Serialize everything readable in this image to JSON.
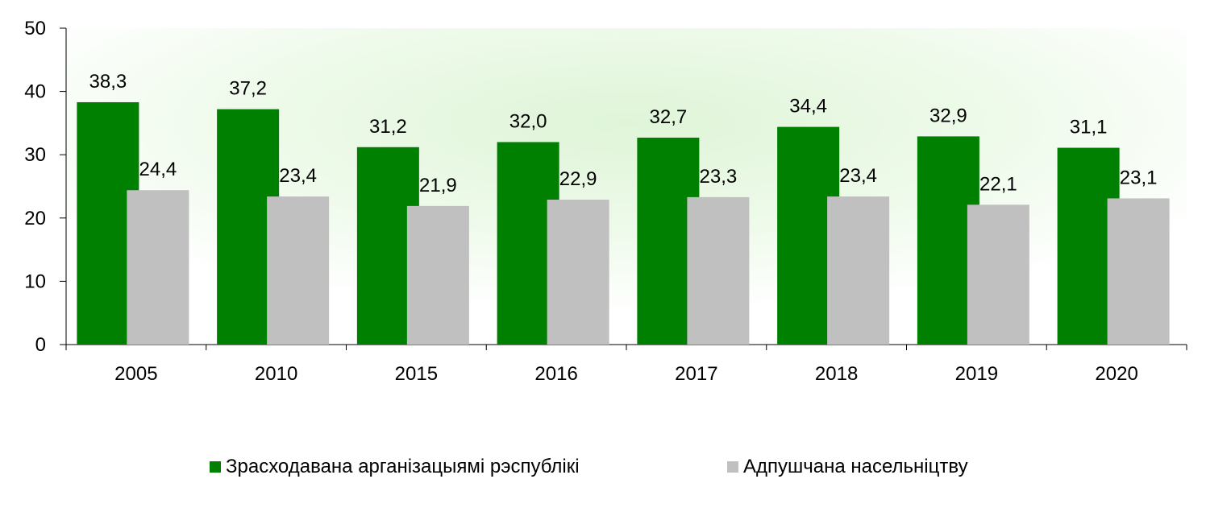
{
  "chart_data": {
    "type": "bar",
    "categories": [
      "2005",
      "2010",
      "2015",
      "2016",
      "2017",
      "2018",
      "2019",
      "2020"
    ],
    "series": [
      {
        "name": "Зрасходавана арганізацыямі рэспублікі",
        "color": "#008000",
        "values": [
          38.3,
          37.2,
          31.2,
          32.0,
          32.7,
          34.4,
          32.9,
          31.1
        ],
        "labels": [
          "38,3",
          "37,2",
          "31,2",
          "32,0",
          "32,7",
          "34,4",
          "32,9",
          "31,1"
        ]
      },
      {
        "name": "Адпушчана насельніцтву",
        "color": "#c0c0c0",
        "values": [
          24.4,
          23.4,
          21.9,
          22.9,
          23.3,
          23.4,
          22.1,
          23.1
        ],
        "labels": [
          "24,4",
          "23,4",
          "21,9",
          "22,9",
          "23,3",
          "23,4",
          "22,1",
          "23,1"
        ]
      }
    ],
    "ylim": [
      0,
      50
    ],
    "yticks": [
      "0",
      "10",
      "20",
      "30",
      "40",
      "50"
    ],
    "grid": false,
    "legend_position": "bottom",
    "plot_background": "radial gradient, light green centre to white"
  }
}
